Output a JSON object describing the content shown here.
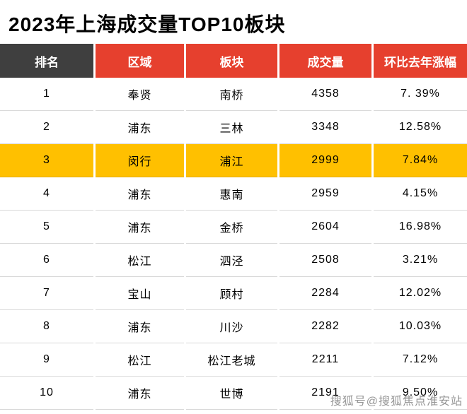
{
  "title": "2023年上海成交量TOP10板块",
  "chart_data": {
    "type": "table",
    "title": "2023年上海成交量TOP10板块",
    "columns": [
      "排名",
      "区域",
      "板块",
      "成交量",
      "环比去年涨幅"
    ],
    "rows": [
      [
        "1",
        "奉贤",
        "南桥",
        "4358",
        "7. 39%"
      ],
      [
        "2",
        "浦东",
        "三林",
        "3348",
        "12.58%"
      ],
      [
        "3",
        "闵行",
        "浦江",
        "2999",
        "7.84%"
      ],
      [
        "4",
        "浦东",
        "惠南",
        "2959",
        "4.15%"
      ],
      [
        "5",
        "浦东",
        "金桥",
        "2604",
        "16.98%"
      ],
      [
        "6",
        "松江",
        "泗泾",
        "2508",
        "3.21%"
      ],
      [
        "7",
        "宝山",
        "顾村",
        "2284",
        "12.02%"
      ],
      [
        "8",
        "浦东",
        "川沙",
        "2282",
        "10.03%"
      ],
      [
        "9",
        "松江",
        "松江老城",
        "2211",
        "7.12%"
      ],
      [
        "10",
        "浦东",
        "世博",
        "2191",
        "9.50%"
      ]
    ],
    "highlighted_row": 3,
    "legend_position": "none",
    "grid": true,
    "colors": {
      "header_bg": "#e6402e",
      "header_rank_bg": "#3f3f3f",
      "header_text": "#ffffff",
      "highlight_bg": "#ffc000",
      "row_bg": "#ffffff",
      "text": "#000000"
    }
  },
  "watermark": {
    "text": "搜狐号@搜狐焦点淮安站"
  }
}
